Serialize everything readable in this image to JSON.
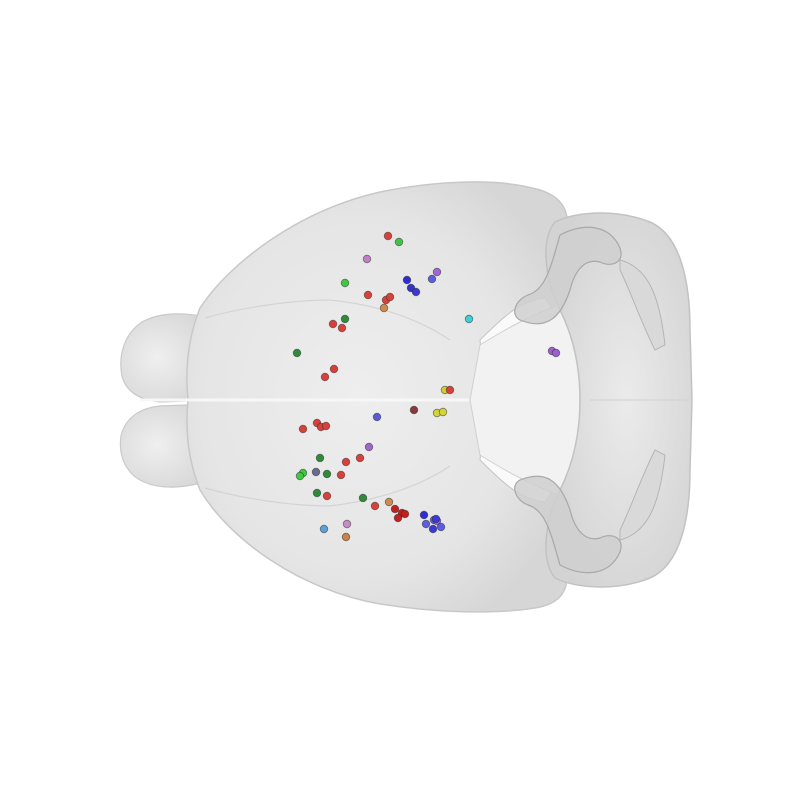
{
  "viewer": {
    "background": "#ffffff",
    "brain_color": "#e3e3e3",
    "view": "dorsal"
  },
  "points": [
    {
      "c": "#d9403a"
    },
    {
      "c": "#3fc44a"
    },
    {
      "c": "#bf7fc4"
    },
    {
      "c": "#2d2dd6"
    },
    {
      "c": "#3232cc"
    },
    {
      "c": "#5d5de0"
    },
    {
      "c": "#a066d6"
    },
    {
      "c": "#3a3ad4"
    },
    {
      "c": "#40c840"
    },
    {
      "c": "#d9403a"
    },
    {
      "c": "#d9403a"
    },
    {
      "c": "#d9403a"
    },
    {
      "c": "#d08a4a"
    },
    {
      "c": "#3ad0d6"
    },
    {
      "c": "#2f8a3a"
    },
    {
      "c": "#d9403a"
    },
    {
      "c": "#d9403a"
    },
    {
      "c": "#2f8a3a"
    },
    {
      "c": "#9b5fd0"
    },
    {
      "c": "#9b5fd0"
    },
    {
      "c": "#d9403a"
    },
    {
      "c": "#d9403a"
    },
    {
      "c": "#d4c93a"
    },
    {
      "c": "#d9403a"
    },
    {
      "c": "#5a5ad6"
    },
    {
      "c": "#8a3a3a"
    },
    {
      "c": "#d4d43a"
    },
    {
      "c": "#d4d43a"
    },
    {
      "c": "#d9403a"
    },
    {
      "c": "#d9403a"
    },
    {
      "c": "#d9403a"
    },
    {
      "c": "#d9403a"
    },
    {
      "c": "#a066c8"
    },
    {
      "c": "#2f8a3a"
    },
    {
      "c": "#d9403a"
    },
    {
      "c": "#d9403a"
    },
    {
      "c": "#d9403a"
    },
    {
      "c": "#2f8a3a"
    },
    {
      "c": "#40c840"
    },
    {
      "c": "#40c840"
    },
    {
      "c": "#6a6a8a"
    },
    {
      "c": "#2f8a3a"
    },
    {
      "c": "#d9403a"
    },
    {
      "c": "#2f8a3a"
    },
    {
      "c": "#d9403a"
    },
    {
      "c": "#d08a4a"
    },
    {
      "c": "#c42020"
    },
    {
      "c": "#c42020"
    },
    {
      "c": "#c42020"
    },
    {
      "c": "#c42020"
    },
    {
      "c": "#2d2dd6"
    },
    {
      "c": "#5d5de0"
    },
    {
      "c": "#5d5de0"
    },
    {
      "c": "#a066d6"
    },
    {
      "c": "#3a3ad4"
    },
    {
      "c": "#5d5de0"
    },
    {
      "c": "#3a3ad4"
    },
    {
      "c": "#5aa0d8"
    },
    {
      "c": "#c88ac8"
    },
    {
      "c": "#c8824a"
    }
  ]
}
